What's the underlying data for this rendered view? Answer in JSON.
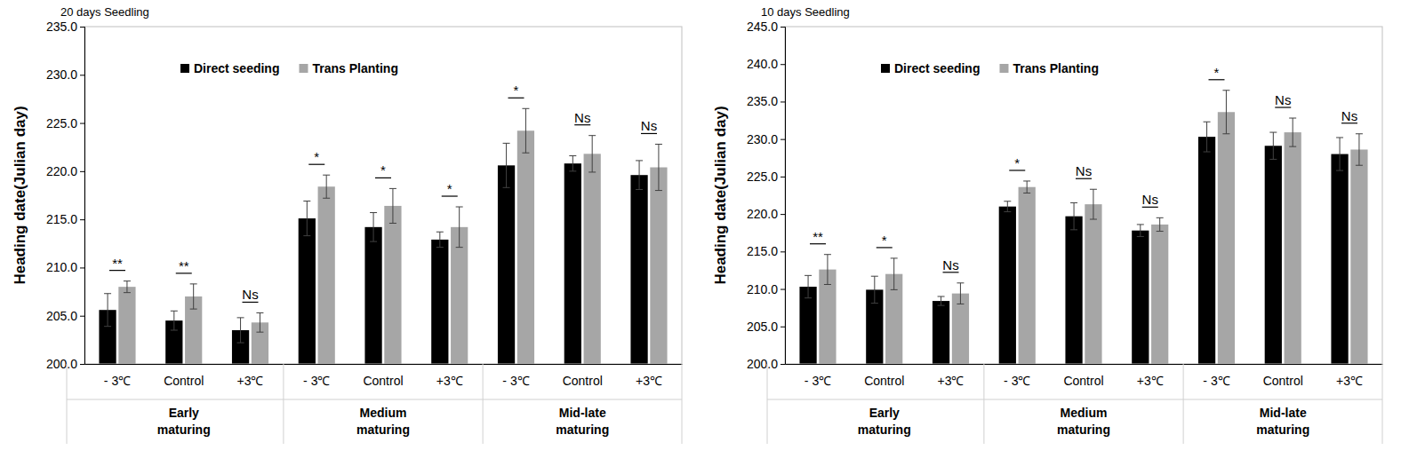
{
  "chart_data": [
    {
      "type": "bar",
      "title": "20 days Seedling",
      "y_label": "Heading date(Julian day)",
      "categories": [
        "- 3℃",
        "Control",
        "+3℃",
        "- 3℃",
        "Control",
        "+3℃",
        "- 3℃",
        "Control",
        "+3℃"
      ],
      "category_groups": [
        "Early maturing",
        "Medium maturing",
        "Mid-late maturing"
      ],
      "series": [
        {
          "name": "Direct seeding",
          "color": "#000000",
          "values": [
            205.6,
            204.5,
            203.5,
            215.1,
            214.2,
            212.9,
            220.6,
            220.8,
            219.6
          ],
          "errors": [
            1.7,
            1.0,
            1.3,
            1.8,
            1.5,
            0.8,
            2.3,
            0.8,
            1.5
          ]
        },
        {
          "name": "Trans Planting",
          "color": "#a6a6a6",
          "values": [
            208.0,
            207.0,
            204.3,
            218.4,
            216.4,
            214.2,
            224.2,
            221.8,
            220.4
          ],
          "errors": [
            0.6,
            1.3,
            1.0,
            1.2,
            1.8,
            2.1,
            2.3,
            1.9,
            2.4
          ]
        }
      ],
      "significance": [
        "**",
        "**",
        "Ns",
        "*",
        "*",
        "*",
        "*",
        "Ns",
        "Ns"
      ],
      "ylim": [
        200,
        235
      ],
      "yticks": [
        {
          "value": 200,
          "label": "200.0"
        },
        {
          "value": 205,
          "label": "205.0"
        },
        {
          "value": 210,
          "label": "210.0"
        },
        {
          "value": 215,
          "label": "215.0"
        },
        {
          "value": 220,
          "label": "220.0"
        },
        {
          "value": 225,
          "label": "225.0"
        },
        {
          "value": 230,
          "label": "230.0"
        },
        {
          "value": 235,
          "label": "235.0"
        }
      ],
      "grid": false,
      "legend": "top"
    },
    {
      "type": "bar",
      "title": "10 days Seedling",
      "y_label": "Heading date(Julian day)",
      "categories": [
        "- 3℃",
        "Control",
        "+3℃",
        "- 3℃",
        "Control",
        "+3℃",
        "- 3℃",
        "Control",
        "+3℃"
      ],
      "category_groups": [
        "Early maturing",
        "Medium maturing",
        "Mid-late maturing"
      ],
      "series": [
        {
          "name": "Direct seeding",
          "color": "#000000",
          "values": [
            210.3,
            209.9,
            208.4,
            221.0,
            219.7,
            217.8,
            230.3,
            229.1,
            228.0
          ],
          "errors": [
            1.5,
            1.8,
            0.6,
            0.7,
            1.8,
            0.8,
            2.0,
            1.8,
            2.2
          ]
        },
        {
          "name": "Trans Planting",
          "color": "#a6a6a6",
          "values": [
            212.6,
            212.0,
            209.4,
            223.6,
            221.3,
            218.6,
            233.6,
            230.9,
            228.6
          ],
          "errors": [
            2.0,
            2.1,
            1.4,
            0.8,
            2.0,
            0.9,
            2.9,
            1.9,
            2.1
          ]
        }
      ],
      "significance": [
        "**",
        "*",
        "Ns",
        "*",
        "Ns",
        "Ns",
        "*",
        "Ns",
        "Ns"
      ],
      "ylim": [
        200,
        245
      ],
      "yticks": [
        {
          "value": 200,
          "label": "200.0"
        },
        {
          "value": 205,
          "label": "205.0"
        },
        {
          "value": 210,
          "label": "210.0"
        },
        {
          "value": 215,
          "label": "215.0"
        },
        {
          "value": 220,
          "label": "220.0"
        },
        {
          "value": 225,
          "label": "225.0"
        },
        {
          "value": 230,
          "label": "230.0"
        },
        {
          "value": 235,
          "label": "235.0"
        },
        {
          "value": 240,
          "label": "240.0"
        },
        {
          "value": 245,
          "label": "245.0"
        }
      ],
      "grid": false,
      "legend": "top"
    }
  ]
}
